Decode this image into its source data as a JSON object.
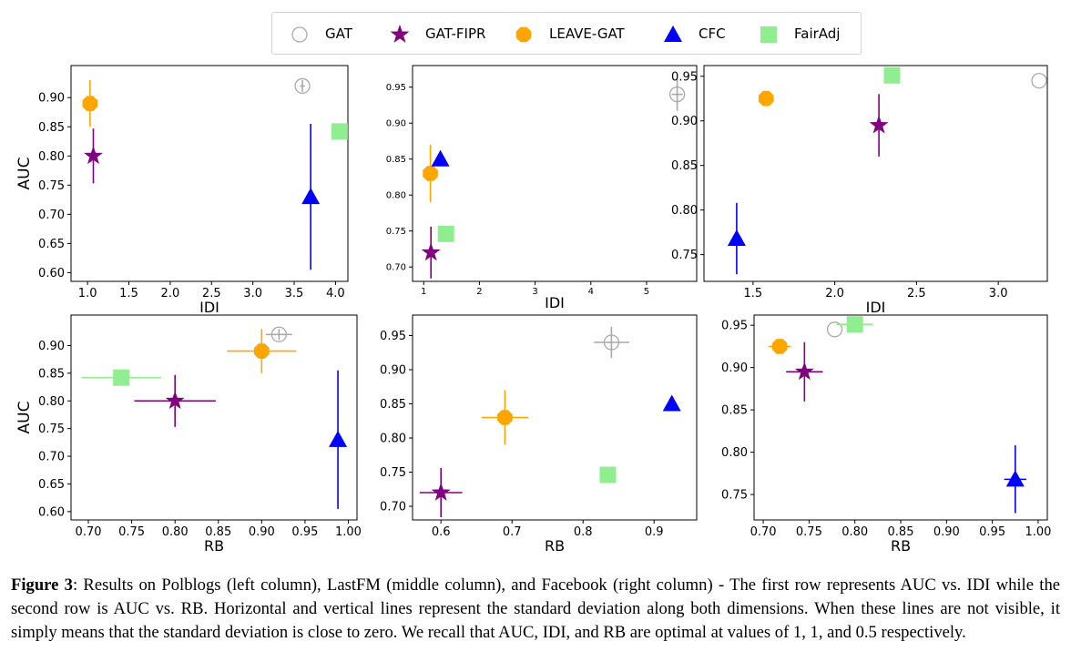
{
  "legend": [
    {
      "name": "GAT",
      "marker": "open-circle",
      "color": "#a9a9a9"
    },
    {
      "name": "GAT-FIPR",
      "marker": "star",
      "color": "#800080"
    },
    {
      "name": "LEAVE-GAT",
      "marker": "octagon",
      "color": "#ffa500"
    },
    {
      "name": "CFC",
      "marker": "triangle",
      "color": "#0000ff"
    },
    {
      "name": "FairAdj",
      "marker": "square",
      "color": "#90ee90"
    }
  ],
  "caption": {
    "label": "Figure 3",
    "text": ": Results on Polblogs (left column), LastFM (middle column), and Facebook (right column) - The first row represents AUC vs. IDI while the second row is AUC vs. RB. Horizontal and vertical lines represent the standard deviation along both dimensions. When these lines are not visible, it simply means that the standard deviation is close to zero. We recall that AUC, IDI, and RB are optimal at values of 1, 1, and 0.5 respectively."
  },
  "chart_data": [
    {
      "type": "scatter",
      "xlabel": "IDI",
      "ylabel": "AUC",
      "xlim": [
        0.8,
        4.15
      ],
      "ylim": [
        0.585,
        0.955
      ],
      "xticks": [
        "1.0",
        "1.5",
        "2.0",
        "2.5",
        "3.0",
        "3.5",
        "4.0"
      ],
      "yticks": [
        "0.60",
        "0.65",
        "0.70",
        "0.75",
        "0.80",
        "0.85",
        "0.90"
      ],
      "grid": false,
      "points": [
        {
          "series": "GAT",
          "x": 3.6,
          "y": 0.92,
          "xerr": 0.03,
          "yerr": 0.01
        },
        {
          "series": "GAT-FIPR",
          "x": 1.07,
          "y": 0.8,
          "xerr": 0.0,
          "yerr": 0.047
        },
        {
          "series": "LEAVE-GAT",
          "x": 1.03,
          "y": 0.89,
          "xerr": 0.0,
          "yerr": 0.04
        },
        {
          "series": "CFC",
          "x": 3.7,
          "y": 0.73,
          "xerr": 0.0,
          "yerr": 0.125
        },
        {
          "series": "FairAdj",
          "x": 4.05,
          "y": 0.842,
          "xerr": 0.0,
          "yerr": 0.0
        }
      ]
    },
    {
      "type": "scatter",
      "xlabel": "IDI",
      "ylabel": "",
      "xlim": [
        0.8,
        5.9
      ],
      "ylim": [
        0.68,
        0.98
      ],
      "xticks": [
        "1",
        "2",
        "3",
        "4",
        "5"
      ],
      "yticks": [
        "0.70",
        "0.75",
        "0.80",
        "0.85",
        "0.90",
        "0.95"
      ],
      "grid": false,
      "points": [
        {
          "series": "GAT",
          "x": 5.55,
          "y": 0.94,
          "xerr": 0.1,
          "yerr": 0.023
        },
        {
          "series": "GAT-FIPR",
          "x": 1.13,
          "y": 0.72,
          "xerr": 0.0,
          "yerr": 0.036
        },
        {
          "series": "LEAVE-GAT",
          "x": 1.12,
          "y": 0.83,
          "xerr": 0.0,
          "yerr": 0.04
        },
        {
          "series": "CFC",
          "x": 1.3,
          "y": 0.85,
          "xerr": 0.0,
          "yerr": 0.0
        },
        {
          "series": "FairAdj",
          "x": 1.4,
          "y": 0.746,
          "xerr": 0.0,
          "yerr": 0.0
        }
      ]
    },
    {
      "type": "scatter",
      "xlabel": "IDI",
      "ylabel": "",
      "xlim": [
        1.2,
        3.3
      ],
      "ylim": [
        0.72,
        0.962
      ],
      "xticks": [
        "1.5",
        "2.0",
        "2.5",
        "3.0"
      ],
      "yticks": [
        "0.75",
        "0.80",
        "0.85",
        "0.90",
        "0.95"
      ],
      "grid": false,
      "points": [
        {
          "series": "GAT",
          "x": 3.25,
          "y": 0.945,
          "xerr": 0.0,
          "yerr": 0.0
        },
        {
          "series": "GAT-FIPR",
          "x": 2.27,
          "y": 0.895,
          "xerr": 0.0,
          "yerr": 0.035
        },
        {
          "series": "LEAVE-GAT",
          "x": 1.58,
          "y": 0.925,
          "xerr": 0.0,
          "yerr": 0.0
        },
        {
          "series": "CFC",
          "x": 1.4,
          "y": 0.768,
          "xerr": 0.0,
          "yerr": 0.04
        },
        {
          "series": "FairAdj",
          "x": 2.35,
          "y": 0.951,
          "xerr": 0.0,
          "yerr": 0.0
        }
      ]
    },
    {
      "type": "scatter",
      "xlabel": "RB",
      "ylabel": "AUC",
      "xlim": [
        0.68,
        1.01
      ],
      "ylim": [
        0.585,
        0.955
      ],
      "xticks": [
        "0.70",
        "0.75",
        "0.80",
        "0.85",
        "0.90",
        "0.95",
        "1.00"
      ],
      "yticks": [
        "0.60",
        "0.65",
        "0.70",
        "0.75",
        "0.80",
        "0.85",
        "0.90"
      ],
      "grid": false,
      "points": [
        {
          "series": "GAT",
          "x": 0.92,
          "y": 0.92,
          "xerr": 0.015,
          "yerr": 0.01
        },
        {
          "series": "GAT-FIPR",
          "x": 0.8,
          "y": 0.8,
          "xerr": 0.047,
          "yerr": 0.047
        },
        {
          "series": "LEAVE-GAT",
          "x": 0.9,
          "y": 0.89,
          "xerr": 0.04,
          "yerr": 0.04
        },
        {
          "series": "CFC",
          "x": 0.988,
          "y": 0.73,
          "xerr": 0.0,
          "yerr": 0.125
        },
        {
          "series": "FairAdj",
          "x": 0.738,
          "y": 0.842,
          "xerr": 0.046,
          "yerr": 0.0
        }
      ]
    },
    {
      "type": "scatter",
      "xlabel": "RB",
      "ylabel": "",
      "xlim": [
        0.56,
        0.96
      ],
      "ylim": [
        0.68,
        0.98
      ],
      "xticks": [
        "0.6",
        "0.7",
        "0.8",
        "0.9"
      ],
      "yticks": [
        "0.70",
        "0.75",
        "0.80",
        "0.85",
        "0.90",
        "0.95"
      ],
      "grid": false,
      "points": [
        {
          "series": "GAT",
          "x": 0.84,
          "y": 0.94,
          "xerr": 0.025,
          "yerr": 0.023
        },
        {
          "series": "GAT-FIPR",
          "x": 0.6,
          "y": 0.72,
          "xerr": 0.03,
          "yerr": 0.036
        },
        {
          "series": "LEAVE-GAT",
          "x": 0.69,
          "y": 0.83,
          "xerr": 0.033,
          "yerr": 0.04
        },
        {
          "series": "CFC",
          "x": 0.925,
          "y": 0.85,
          "xerr": 0.0,
          "yerr": 0.0
        },
        {
          "series": "FairAdj",
          "x": 0.835,
          "y": 0.746,
          "xerr": 0.012,
          "yerr": 0.0
        }
      ]
    },
    {
      "type": "scatter",
      "xlabel": "RB",
      "ylabel": "",
      "xlim": [
        0.69,
        1.01
      ],
      "ylim": [
        0.72,
        0.962
      ],
      "xticks": [
        "0.70",
        "0.75",
        "0.80",
        "0.85",
        "0.90",
        "0.95",
        "1.00"
      ],
      "yticks": [
        "0.75",
        "0.80",
        "0.85",
        "0.90",
        "0.95"
      ],
      "grid": false,
      "points": [
        {
          "series": "GAT",
          "x": 0.778,
          "y": 0.945,
          "xerr": 0.0,
          "yerr": 0.0
        },
        {
          "series": "GAT-FIPR",
          "x": 0.745,
          "y": 0.895,
          "xerr": 0.02,
          "yerr": 0.035
        },
        {
          "series": "LEAVE-GAT",
          "x": 0.718,
          "y": 0.925,
          "xerr": 0.012,
          "yerr": 0.0
        },
        {
          "series": "CFC",
          "x": 0.975,
          "y": 0.768,
          "xerr": 0.012,
          "yerr": 0.04
        },
        {
          "series": "FairAdj",
          "x": 0.8,
          "y": 0.951,
          "xerr": 0.02,
          "yerr": 0.0
        }
      ]
    }
  ]
}
